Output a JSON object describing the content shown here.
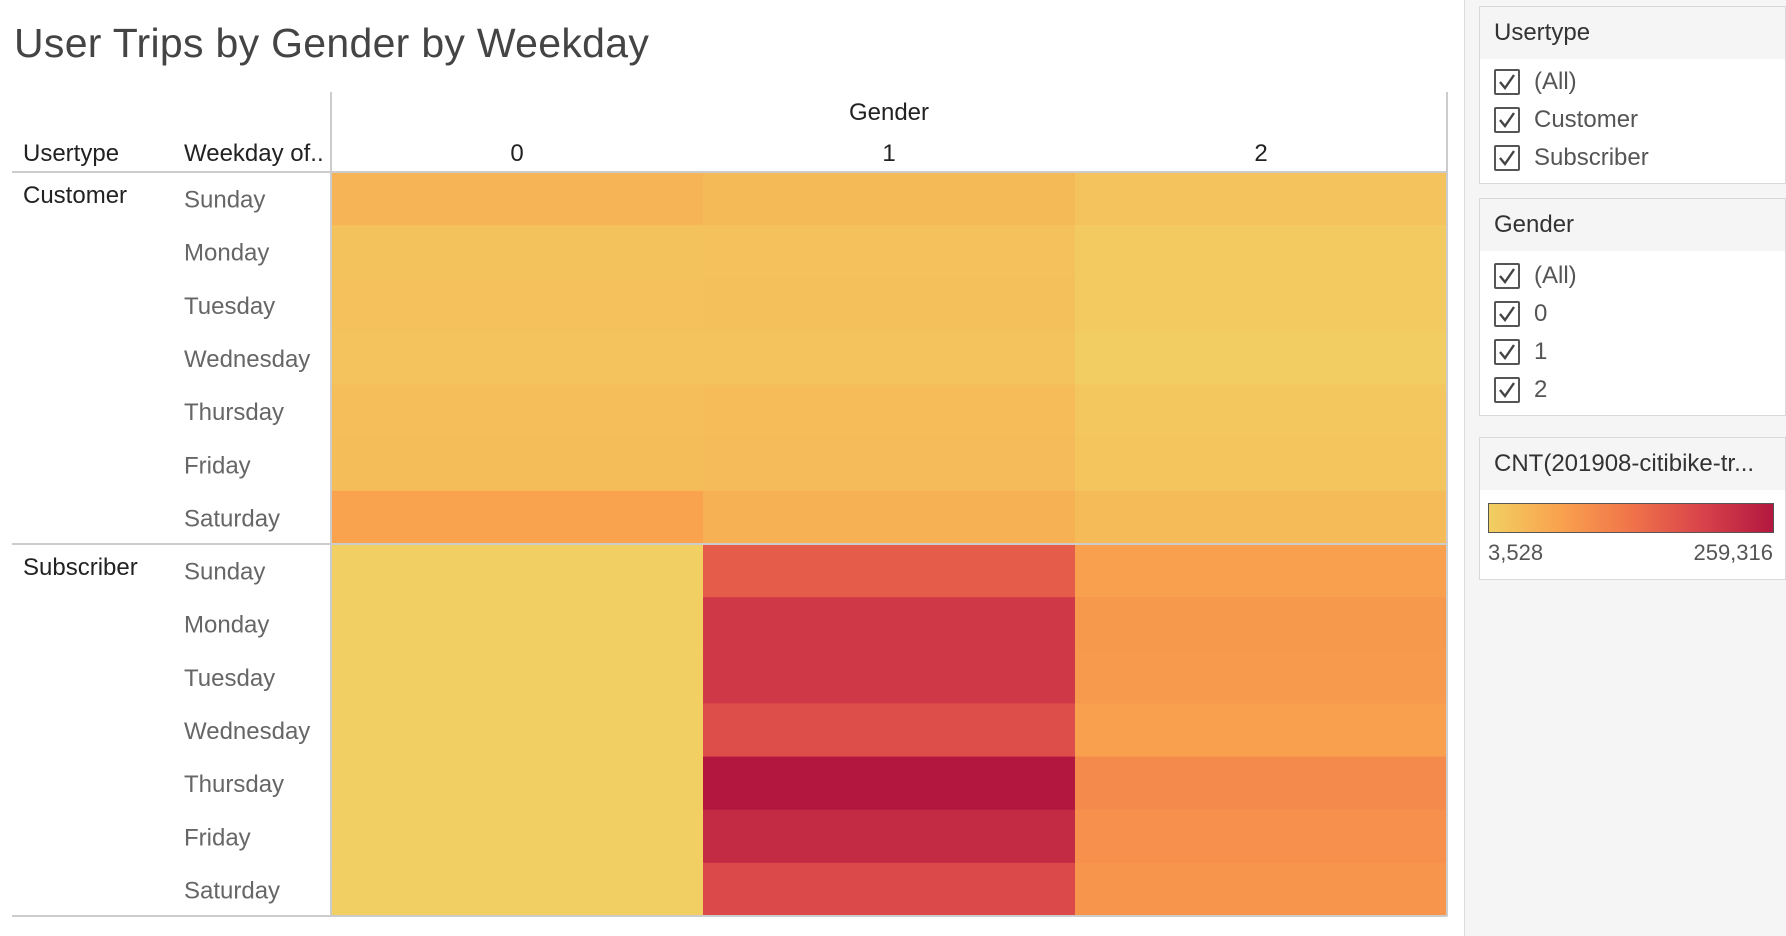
{
  "title": "User Trips by Gender by Weekday",
  "chart_data": {
    "type": "heatmap",
    "title": "User Trips by Gender by Weekday",
    "column_group_label": "Gender",
    "row_header_labels": [
      "Usertype",
      "Weekday of.."
    ],
    "columns": [
      "0",
      "1",
      "2"
    ],
    "groups": [
      {
        "name": "Customer",
        "rows": [
          "Sunday",
          "Monday",
          "Tuesday",
          "Wednesday",
          "Thursday",
          "Friday",
          "Saturday"
        ],
        "values": [
          [
            42000,
            34000,
            20000
          ],
          [
            22000,
            24000,
            10000
          ],
          [
            24000,
            25000,
            10000
          ],
          [
            21000,
            21000,
            7000
          ],
          [
            28000,
            31000,
            16000
          ],
          [
            30000,
            33000,
            18000
          ],
          [
            66000,
            46000,
            32000
          ]
        ]
      },
      {
        "name": "Subscriber",
        "rows": [
          "Sunday",
          "Monday",
          "Tuesday",
          "Wednesday",
          "Thursday",
          "Friday",
          "Saturday"
        ],
        "values": [
          [
            3528,
            162000,
            70000
          ],
          [
            3600,
            212000,
            80000
          ],
          [
            3600,
            212000,
            78000
          ],
          [
            3600,
            182000,
            70000
          ],
          [
            3600,
            259316,
            100000
          ],
          [
            3600,
            232000,
            92000
          ],
          [
            3528,
            188000,
            85000
          ]
        ]
      }
    ],
    "color_scale": {
      "min": 3528,
      "max": 259316,
      "colors": [
        "#f2cf62",
        "#f9a24e",
        "#f0744a",
        "#d8434a",
        "#b3173f"
      ]
    }
  },
  "filters": [
    {
      "title": "Usertype",
      "options": [
        "(All)",
        "Customer",
        "Subscriber"
      ]
    },
    {
      "title": "Gender",
      "options": [
        "(All)",
        "0",
        "1",
        "2"
      ]
    }
  ],
  "legend": {
    "title": "CNT(201908-citibike-tr...",
    "min_label": "3,528",
    "max_label": "259,316"
  },
  "colors": {
    "grid_line": "#cccccc",
    "row_label": "#666666",
    "header_text": "#222222"
  }
}
